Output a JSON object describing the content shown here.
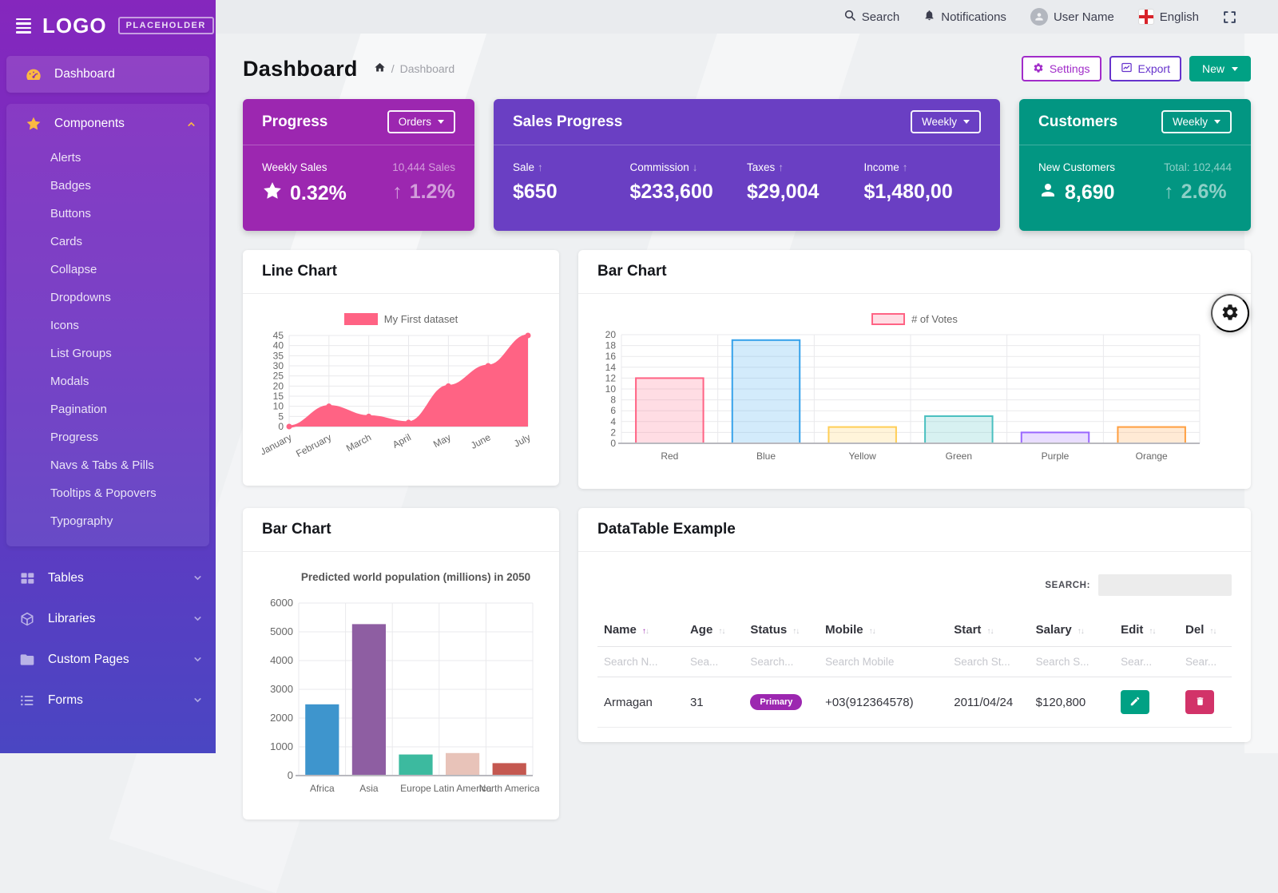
{
  "topbar": {
    "search": "Search",
    "notifications": "Notifications",
    "user": "User Name",
    "language": "English"
  },
  "sidebar": {
    "logo": "LOGO",
    "logo_badge": "PLACEHOLDER",
    "dashboard": "Dashboard",
    "components": {
      "label": "Components",
      "children": [
        "Alerts",
        "Badges",
        "Buttons",
        "Cards",
        "Collapse",
        "Dropdowns",
        "Icons",
        "List Groups",
        "Modals",
        "Pagination",
        "Progress",
        "Navs & Tabs & Pills",
        "Tooltips & Popovers",
        "Typography"
      ]
    },
    "groups": [
      {
        "label": "Tables",
        "icon": "table-icon"
      },
      {
        "label": "Libraries",
        "icon": "cube-icon"
      },
      {
        "label": "Custom Pages",
        "icon": "folder-icon"
      },
      {
        "label": "Forms",
        "icon": "list-icon"
      }
    ]
  },
  "page": {
    "title": "Dashboard",
    "breadcrumb": {
      "separator": "/",
      "current": "Dashboard"
    },
    "buttons": {
      "settings": "Settings",
      "export": "Export",
      "new": "New"
    }
  },
  "stat_cards": {
    "progress": {
      "title": "Progress",
      "dropdown": "Orders",
      "color": "#9c27b0",
      "metric_label": "Weekly Sales",
      "metric_value": "0.32%",
      "side_label": "10,444 Sales",
      "side_value": "1.2%"
    },
    "sales": {
      "title": "Sales Progress",
      "dropdown": "Weekly",
      "color": "#6a3fc3",
      "metrics": [
        {
          "label": "Sale",
          "direction": "up",
          "value": "$650"
        },
        {
          "label": "Commission",
          "direction": "down",
          "value": "$233,600"
        },
        {
          "label": "Taxes",
          "direction": "up",
          "value": "$29,004"
        },
        {
          "label": "Income",
          "direction": "up",
          "value": "$1,480,00"
        }
      ]
    },
    "customers": {
      "title": "Customers",
      "dropdown": "Weekly",
      "color": "#029682",
      "metric_label": "New Customers",
      "metric_value": "8,690",
      "side_label": "Total: 102,444",
      "side_value": "2.6%"
    }
  },
  "cards": {
    "line_chart_title": "Line Chart",
    "bar_chart_title": "Bar Chart",
    "bar_chart2_title": "Bar Chart",
    "datatable_title": "DataTable Example"
  },
  "chart_data": [
    {
      "type": "line",
      "legend": "My First dataset",
      "x": [
        "January",
        "February",
        "March",
        "April",
        "May",
        "June",
        "July"
      ],
      "series": [
        {
          "name": "My First dataset",
          "values": [
            0,
            10,
            5,
            2,
            20,
            30,
            45
          ]
        }
      ],
      "color": "#ff6384",
      "ylim": [
        0,
        45
      ],
      "ytick_step": 5,
      "grid": true,
      "legend_position": "top"
    },
    {
      "type": "bar",
      "legend": "# of Votes",
      "categories": [
        "Red",
        "Blue",
        "Yellow",
        "Green",
        "Purple",
        "Orange"
      ],
      "values": [
        12,
        19,
        3,
        5,
        2,
        3
      ],
      "fill_colors": [
        "rgba(255,99,132,0.22)",
        "rgba(54,162,235,0.22)",
        "rgba(255,206,86,0.22)",
        "rgba(75,192,192,0.22)",
        "rgba(153,102,255,0.22)",
        "rgba(255,159,64,0.22)"
      ],
      "border_colors": [
        "#ff6384",
        "#36a2eb",
        "#ffce56",
        "#4bc0c0",
        "#9966ff",
        "#ff9f40"
      ],
      "ylim": [
        0,
        20
      ],
      "ytick_step": 2,
      "grid": true,
      "legend_position": "top"
    },
    {
      "type": "bar",
      "title": "Predicted world population (millions) in 2050",
      "categories": [
        "Africa",
        "Asia",
        "Europe",
        "Latin America",
        "North America"
      ],
      "values": [
        2478,
        5267,
        734,
        784,
        433
      ],
      "fill_colors": [
        "#3e95cd",
        "#8e5ea2",
        "#3cba9f",
        "#e8c3b9",
        "#c45850"
      ],
      "border_colors": [],
      "ylim": [
        0,
        6000
      ],
      "ytick_step": 1000,
      "grid": true,
      "legend_position": "none"
    }
  ],
  "datatable": {
    "search_label": "SEARCH:",
    "columns": [
      {
        "label": "Name",
        "filter": "Search N...",
        "sort": "asc"
      },
      {
        "label": "Age",
        "filter": "Sea..."
      },
      {
        "label": "Status",
        "filter": "Search..."
      },
      {
        "label": "Mobile",
        "filter": "Search Mobile"
      },
      {
        "label": "Start",
        "filter": "Search St..."
      },
      {
        "label": "Salary",
        "filter": "Search S..."
      },
      {
        "label": "Edit",
        "filter": "Sear..."
      },
      {
        "label": "Del",
        "filter": "Sear..."
      }
    ],
    "row": {
      "name": "Armagan",
      "age": "31",
      "status": "Primary",
      "mobile": "+03(912364578)",
      "start": "2011/04/24",
      "salary": "$120,800"
    }
  }
}
